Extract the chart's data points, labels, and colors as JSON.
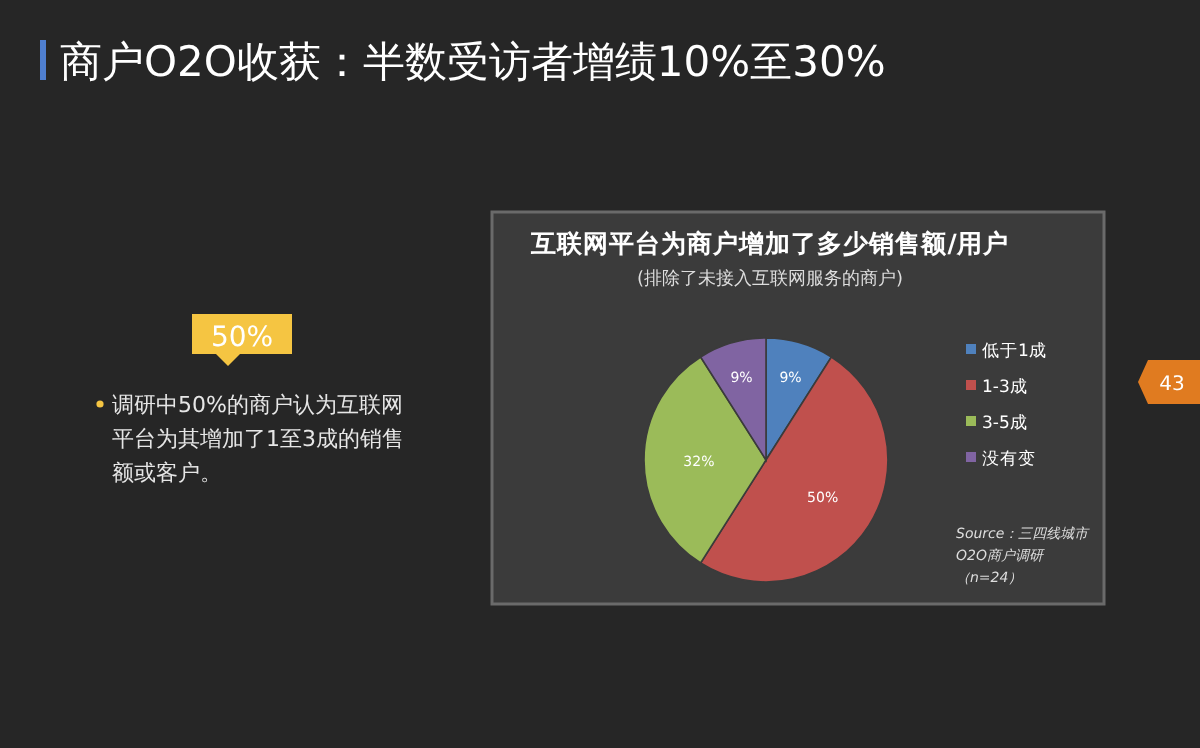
{
  "chart_data": {
    "type": "pie",
    "title": "商户O2O收获：半数受访者增绩10%至30%",
    "subtitle": "互联网平台为商户增加了多少销售额/用户",
    "categories": [
      "低于1成",
      "1-3成",
      "3-5成",
      "没有变"
    ],
    "values": [
      9,
      50,
      32,
      9
    ],
    "value_labels": [
      "9%",
      "50%",
      "32%",
      "9%"
    ],
    "colors": [
      "#4f81bd",
      "#c0504d",
      "#9bbb59",
      "#8064a2"
    ],
    "legend": "right",
    "annotations": [
      "(排除了未接入互联网服务的商户)",
      "50%",
      "调研中50%的商户认为互联网平台为其增加了1至3成的销售额或客户。",
      "Source：三四线城市O2O商户调研（n=24）",
      "43"
    ]
  }
}
